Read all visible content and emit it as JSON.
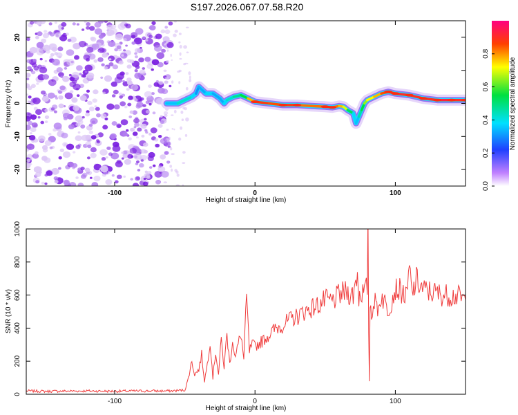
{
  "title": "S197.2026.067.07.58.R20",
  "chart_data": [
    {
      "type": "heatmap",
      "xlabel": "Height of straight line (km)",
      "ylabel": "Frequency (Hz)",
      "xlim": [
        -163,
        150
      ],
      "ylim": [
        -25,
        25
      ],
      "xticks": [
        -100,
        0,
        100
      ],
      "yticks": [
        -20,
        -10,
        0,
        10,
        20
      ],
      "colorbar": {
        "label": "Normalized spectral amplitude",
        "range": [
          0,
          1
        ],
        "ticks": [
          "0.0",
          "0.2",
          "0.4",
          "0.6",
          "0.8"
        ]
      },
      "noise_region_x": [
        -163,
        -60
      ],
      "ridge": {
        "x": [
          -63,
          -55,
          -50,
          -45,
          -42,
          -40,
          -35,
          -30,
          -25,
          -22,
          -20,
          -15,
          -10,
          -5,
          0,
          10,
          20,
          30,
          40,
          50,
          55,
          60,
          63,
          66,
          70,
          72,
          74,
          76,
          78,
          80,
          85,
          90,
          95,
          100,
          110,
          120,
          130,
          140,
          150
        ],
        "freq": [
          0,
          0,
          1,
          2,
          3,
          5,
          3,
          3,
          1.5,
          0,
          1,
          2,
          2.5,
          1.5,
          0.5,
          0,
          -0.5,
          -0.5,
          -0.8,
          -1,
          -1.2,
          -0.8,
          -1,
          -2,
          -3,
          -6,
          -4,
          -2,
          0,
          1,
          2,
          3,
          3.5,
          3,
          2.5,
          1.5,
          1,
          1,
          1
        ],
        "amplitude": [
          0.3,
          0.4,
          0.45,
          0.4,
          0.35,
          0.25,
          0.4,
          0.35,
          0.3,
          0.35,
          0.4,
          0.45,
          0.5,
          0.6,
          0.95,
          0.8,
          0.9,
          0.85,
          0.8,
          0.85,
          0.9,
          0.75,
          0.8,
          0.6,
          0.45,
          0.3,
          0.4,
          0.5,
          0.6,
          0.7,
          0.75,
          0.8,
          0.9,
          0.85,
          0.95,
          0.85,
          0.95,
          0.9,
          0.9
        ]
      }
    },
    {
      "type": "line",
      "xlabel": "Height of straight line (km)",
      "ylabel": "SNR (10 * v/v)",
      "xlim": [
        -163,
        150
      ],
      "ylim": [
        0,
        1000
      ],
      "xticks": [
        -100,
        0,
        100
      ],
      "yticks": [
        0,
        200,
        400,
        600,
        800,
        1000
      ],
      "series": [
        {
          "name": "SNR",
          "color": "#ef3b3b",
          "x": [
            -163,
            -150,
            -120,
            -100,
            -80,
            -60,
            -50,
            -48,
            -45,
            -43,
            -40,
            -38,
            -36,
            -34,
            -32,
            -30,
            -28,
            -26,
            -24,
            -22,
            -20,
            -18,
            -16,
            -14,
            -12,
            -10,
            -8,
            -6,
            -4,
            -2,
            0,
            5,
            10,
            15,
            20,
            25,
            30,
            35,
            40,
            45,
            50,
            55,
            60,
            65,
            70,
            73,
            74,
            75,
            78,
            80,
            80.5,
            81,
            81.5,
            82,
            83,
            85,
            88,
            90,
            95,
            100,
            105,
            108,
            110,
            112,
            115,
            120,
            125,
            130,
            135,
            140,
            145,
            150
          ],
          "y": [
            20,
            18,
            20,
            18,
            20,
            20,
            25,
            80,
            200,
            120,
            150,
            240,
            80,
            180,
            330,
            100,
            260,
            120,
            330,
            160,
            370,
            180,
            330,
            220,
            300,
            370,
            210,
            590,
            260,
            300,
            290,
            320,
            360,
            400,
            420,
            450,
            470,
            500,
            520,
            540,
            570,
            560,
            600,
            620,
            600,
            740,
            580,
            620,
            610,
            650,
            1000,
            400,
            80,
            550,
            500,
            560,
            520,
            600,
            510,
            640,
            620,
            580,
            760,
            600,
            690,
            630,
            620,
            610,
            600,
            600,
            590,
            570
          ]
        }
      ]
    }
  ]
}
